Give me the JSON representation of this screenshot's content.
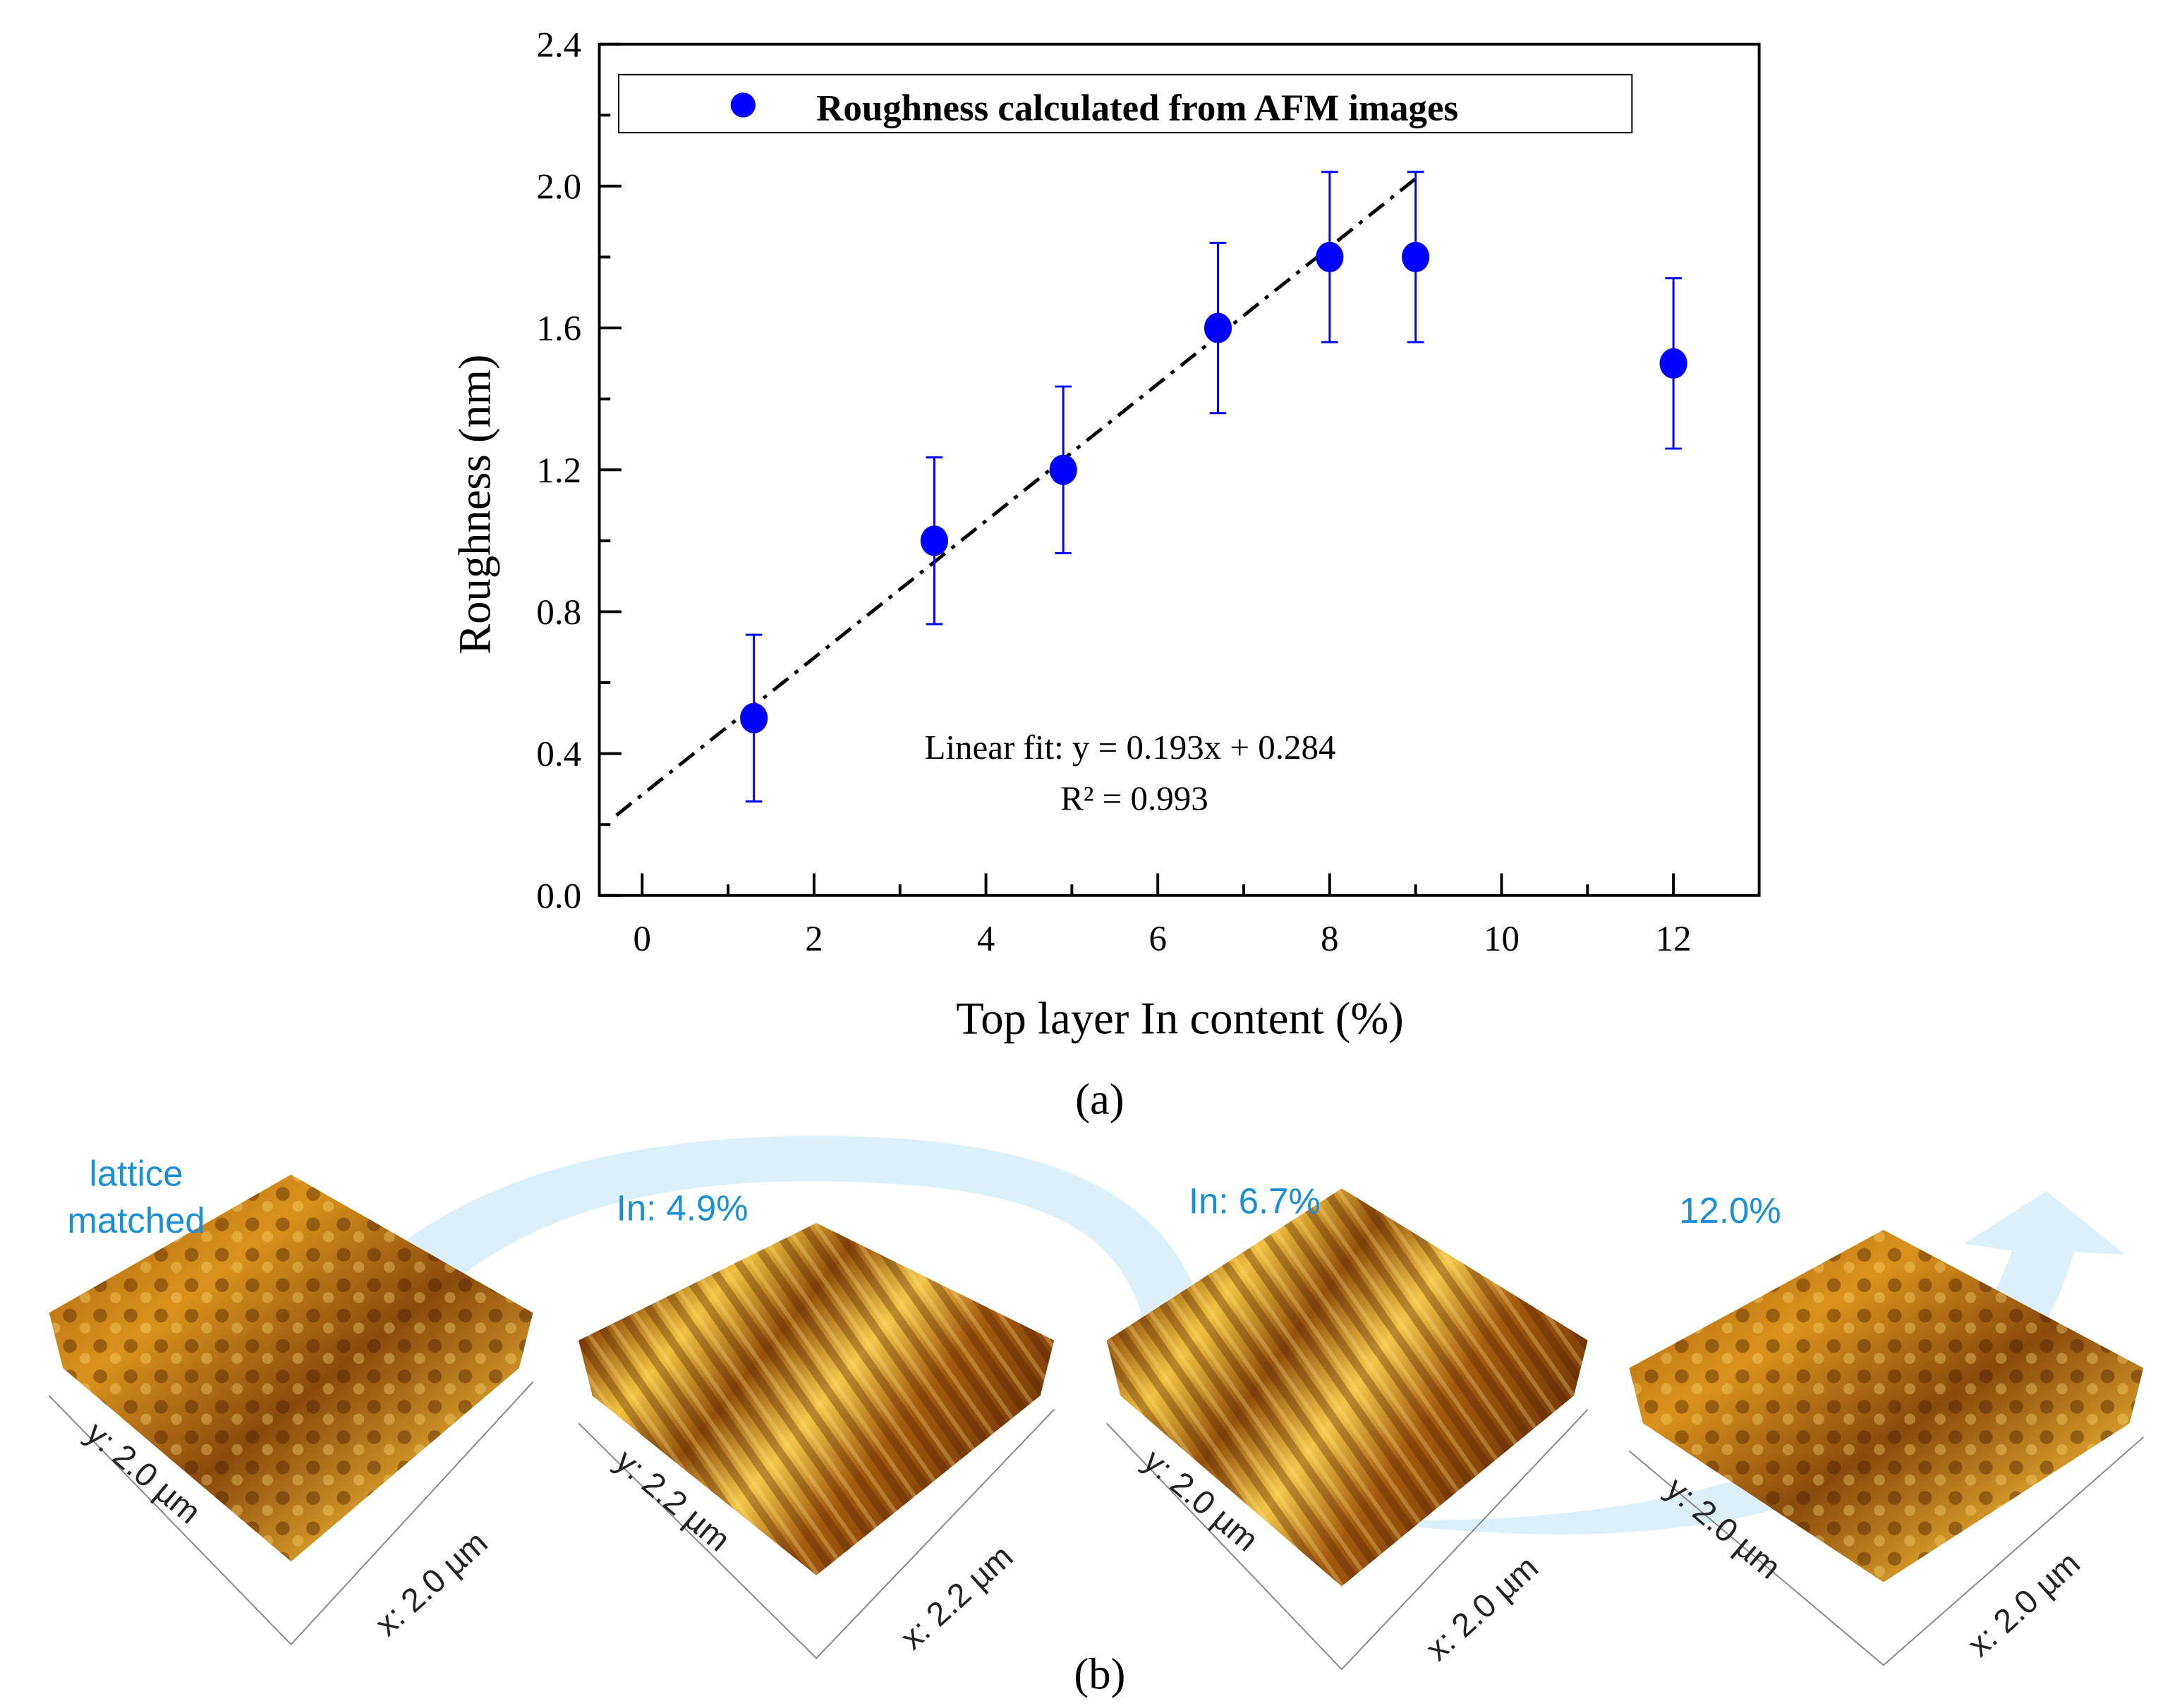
{
  "chart_data": {
    "type": "scatter",
    "title": "",
    "xlabel": "Top layer In content (%)",
    "ylabel": "Roughness  (nm)",
    "xlim": [
      -0.5,
      13.0
    ],
    "ylim": [
      0.0,
      2.4
    ],
    "xticks": [
      0,
      2,
      4,
      6,
      8,
      10,
      12
    ],
    "xtick_labels": [
      "0",
      "2",
      "4",
      "6",
      "8",
      "10",
      "12"
    ],
    "yticks": [
      0.0,
      0.4,
      0.8,
      1.2,
      1.6,
      2.0,
      2.4
    ],
    "ytick_labels": [
      "0.0",
      "0.4",
      "0.8",
      "1.2",
      "1.6",
      "2.0",
      "2.4"
    ],
    "grid": false,
    "legend_position": "top",
    "series": [
      {
        "name": "Roughness calculated from AFM images",
        "color": "#0000ff",
        "x": [
          1.3,
          3.4,
          4.9,
          6.7,
          8.0,
          9.0,
          12.0
        ],
        "y": [
          0.5,
          1.0,
          1.2,
          1.6,
          1.8,
          1.8,
          1.5
        ],
        "error": [
          0.235,
          0.235,
          0.235,
          0.24,
          0.24,
          0.24,
          0.24
        ]
      }
    ],
    "fit": {
      "slope": 0.193,
      "intercept": 0.284,
      "x_range": [
        -0.3,
        9.0
      ],
      "color": "#000000",
      "equation_label": "Linear fit: y = 0.193x + 0.284",
      "r2_label": "R² = 0.993"
    },
    "panel_label": "(a)"
  },
  "afm_panel": {
    "panel_label": "(b)",
    "arrow_color": "#bfe3f4",
    "label_color": "#1a8fd6",
    "images": [
      {
        "title_line1": "lattice",
        "title_line2": "matched",
        "y_axis": "y: 2.0 µm",
        "x_axis": "x: 2.0 µm"
      },
      {
        "title_line1": "In: 4.9%",
        "title_line2": "",
        "y_axis": "y: 2.2 µm",
        "x_axis": "x: 2.2 µm"
      },
      {
        "title_line1": "In: 6.7%",
        "title_line2": "",
        "y_axis": "y: 2.0 µm",
        "x_axis": "x: 2.0 µm"
      },
      {
        "title_line1": "12.0%",
        "title_line2": "",
        "y_axis": "y: 2.0 µm",
        "x_axis": "x: 2.0 µm"
      }
    ]
  }
}
